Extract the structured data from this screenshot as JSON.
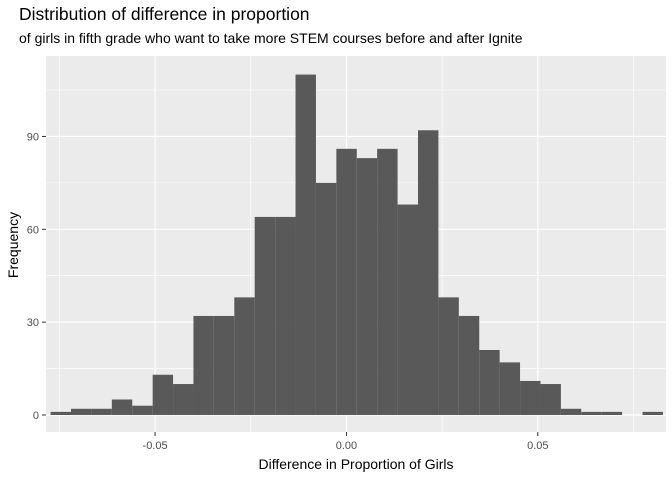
{
  "chart_data": {
    "type": "bar",
    "title": "Distribution of difference in proportion",
    "subtitle": "of girls in fifth grade who want to take more STEM courses before and after Ignite",
    "xlabel": "Difference in Proportion of Girls",
    "ylabel": "Frequency",
    "xlim": [
      -0.0785,
      0.0835
    ],
    "ylim": [
      -5.5,
      116
    ],
    "x_ticks": [
      -0.05,
      0.0,
      0.05
    ],
    "x_tick_labels": [
      "-0.05",
      "0.00",
      "0.05"
    ],
    "y_ticks": [
      0,
      30,
      60,
      90
    ],
    "y_tick_labels": [
      "0",
      "30",
      "60",
      "90"
    ],
    "bin_width": 0.005333,
    "bin_starts": [
      -0.0773,
      -0.07197,
      -0.06663,
      -0.0613,
      -0.05597,
      -0.05063,
      -0.0453,
      -0.03997,
      -0.03463,
      -0.0293,
      -0.02397,
      -0.01863,
      -0.0133,
      -0.00797,
      -0.00263,
      0.0027,
      0.00803,
      0.01337,
      0.0187,
      0.02403,
      0.02937,
      0.0347,
      0.04003,
      0.04537,
      0.0507,
      0.05603,
      0.06137,
      0.0667,
      0.07203,
      0.07737
    ],
    "values": [
      1,
      2,
      2,
      5,
      3,
      13,
      10,
      32,
      32,
      38,
      64,
      64,
      110,
      75,
      86,
      83,
      86,
      68,
      92,
      38,
      32,
      21,
      17,
      11,
      10,
      2,
      1,
      1,
      0,
      1
    ],
    "grid": true,
    "legend": "none",
    "bar_color": "#595959",
    "panel_color": "#ebebeb"
  }
}
